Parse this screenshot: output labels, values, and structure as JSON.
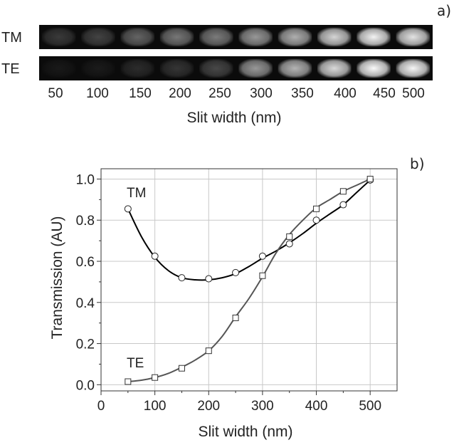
{
  "chart_data": [
    {
      "type": "image",
      "panel_label": "a)",
      "rows": [
        {
          "name": "TM",
          "brightness": [
            0.16,
            0.2,
            0.34,
            0.42,
            0.44,
            0.56,
            0.66,
            0.82,
            0.95,
            0.88
          ]
        },
        {
          "name": "TE",
          "brightness": [
            0.02,
            0.03,
            0.1,
            0.14,
            0.22,
            0.56,
            0.68,
            0.84,
            0.98,
            0.96
          ]
        }
      ],
      "categories": [
        "50",
        "100",
        "150",
        "200",
        "250",
        "300",
        "350",
        "400",
        "450",
        "500"
      ],
      "xlabel": "Slit width (nm)"
    },
    {
      "type": "line",
      "panel_label": "b)",
      "xlabel": "Slit width (nm)",
      "ylabel": "Transmission (AU)",
      "xlim": [
        0,
        550
      ],
      "ylim": [
        -0.03,
        1.05
      ],
      "xticks": [
        "0",
        "100",
        "200",
        "300",
        "400",
        "500"
      ],
      "yticks": [
        "0.0",
        "0.2",
        "0.4",
        "0.6",
        "0.8",
        "1.0"
      ],
      "grid": true,
      "series": [
        {
          "name": "TM",
          "marker": "circle",
          "color": "#000000",
          "x": [
            50,
            100,
            150,
            200,
            250,
            300,
            350,
            400,
            450,
            500
          ],
          "y": [
            0.855,
            0.625,
            0.52,
            0.515,
            0.545,
            0.625,
            0.685,
            0.8,
            0.875,
            0.995
          ],
          "fit": {
            "x": [
              50,
              75,
              100,
              125,
              150,
              175,
              200,
              225,
              250,
              275,
              300,
              325,
              350,
              375,
              400,
              425,
              450,
              475,
              500
            ],
            "y": [
              0.855,
              0.72,
              0.62,
              0.555,
              0.52,
              0.51,
              0.51,
              0.52,
              0.54,
              0.575,
              0.615,
              0.65,
              0.69,
              0.735,
              0.785,
              0.83,
              0.875,
              0.935,
              0.995
            ]
          }
        },
        {
          "name": "TE",
          "marker": "square",
          "color": "#555555",
          "x": [
            50,
            100,
            150,
            200,
            250,
            300,
            350,
            400,
            450,
            500
          ],
          "y": [
            0.015,
            0.035,
            0.08,
            0.165,
            0.325,
            0.53,
            0.72,
            0.855,
            0.94,
            1.0
          ],
          "fit": {
            "x": [
              50,
              75,
              100,
              125,
              150,
              175,
              200,
              225,
              250,
              275,
              300,
              325,
              350,
              375,
              400,
              425,
              450,
              475,
              500
            ],
            "y": [
              0.015,
              0.022,
              0.035,
              0.055,
              0.085,
              0.12,
              0.165,
              0.235,
              0.33,
              0.42,
              0.525,
              0.64,
              0.73,
              0.8,
              0.86,
              0.9,
              0.94,
              0.97,
              1.0
            ]
          }
        }
      ],
      "annotations": [
        "TM",
        "TE"
      ]
    }
  ]
}
